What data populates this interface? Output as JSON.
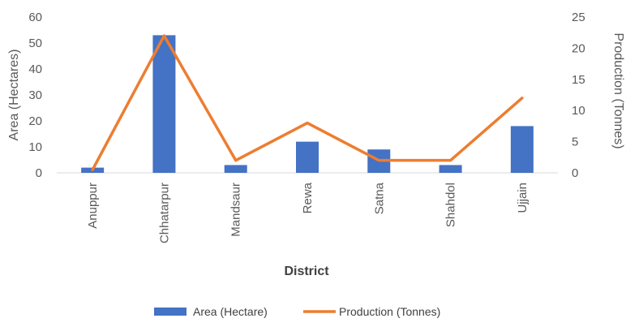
{
  "chart_data": {
    "type": "bar",
    "categories": [
      "Anuppur",
      "Chhatarpur",
      "Mandsaur",
      "Rewa",
      "Satna",
      "Shahdol",
      "Ujjain"
    ],
    "series": [
      {
        "name": "Area (Hectare)",
        "type": "bar",
        "axis": "left",
        "color": "#4472c4",
        "values": [
          2,
          53,
          3,
          12,
          9,
          3,
          18
        ]
      },
      {
        "name": "Production (Tonnes)",
        "type": "line",
        "axis": "right",
        "color": "#ed7d31",
        "values": [
          0.5,
          22,
          2,
          8,
          2,
          2,
          12
        ]
      }
    ],
    "xlabel": "District",
    "ylabel": "Area (Hectares)",
    "y2label": "Production (Tonnes)",
    "ylim": [
      0,
      60
    ],
    "yticks": [
      0,
      10,
      20,
      30,
      40,
      50,
      60
    ],
    "y2lim": [
      0,
      25
    ],
    "y2ticks": [
      0,
      5,
      10,
      15,
      20,
      25
    ],
    "grid": false,
    "legend_position": "bottom"
  }
}
